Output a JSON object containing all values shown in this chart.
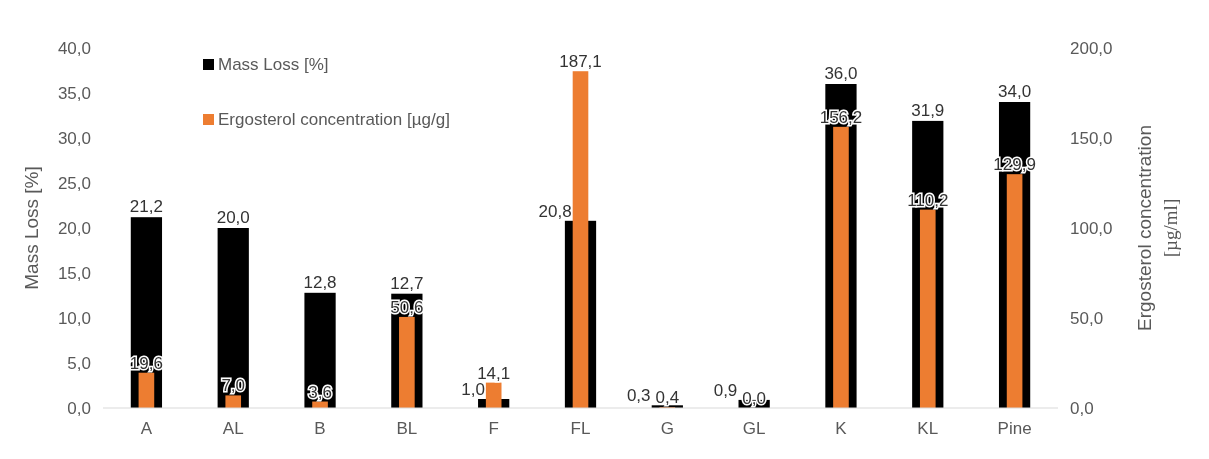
{
  "chart_data": {
    "type": "bar",
    "categories": [
      "A",
      "AL",
      "B",
      "BL",
      "F",
      "FL",
      "G",
      "GL",
      "K",
      "KL",
      "Pine"
    ],
    "series": [
      {
        "name": "Mass Loss [%]",
        "color": "#000000",
        "values": [
          21.2,
          20.0,
          12.8,
          12.7,
          1.0,
          20.8,
          0.3,
          0.9,
          36.0,
          31.9,
          34.0
        ],
        "value_labels": [
          "21,2",
          "20,0",
          "12,8",
          "12,7",
          "1,0",
          "20,8",
          "0,3",
          "0,9",
          "36,0",
          "31,9",
          "34,0"
        ]
      },
      {
        "name": "Ergosterol concentration [µg/g]",
        "color": "#ed7d31",
        "axis": "y2",
        "values": [
          19.6,
          7.0,
          3.6,
          50.6,
          14.1,
          187.1,
          0.4,
          0.0,
          156.2,
          110.2,
          129.9
        ],
        "value_labels": [
          "19,6",
          "7,0",
          "3,6",
          "50,6",
          "14,1",
          "187,1",
          "0,4",
          "0,0",
          "156,2",
          "110,2",
          "129,9"
        ]
      }
    ],
    "ylabel": "Mass Loss [%]",
    "y2label": "Ergosterol concentration [µg/ml]",
    "ylim": [
      0,
      40
    ],
    "yticks": [
      {
        "value": 0,
        "label": "0,0"
      },
      {
        "value": 5,
        "label": "5,0"
      },
      {
        "value": 10,
        "label": "10,0"
      },
      {
        "value": 15,
        "label": "15,0"
      },
      {
        "value": 20,
        "label": "20,0"
      },
      {
        "value": 25,
        "label": "25,0"
      },
      {
        "value": 30,
        "label": "30,0"
      },
      {
        "value": 35,
        "label": "35,0"
      },
      {
        "value": 40,
        "label": "40,0"
      }
    ],
    "y2lim": [
      0,
      200
    ],
    "y2ticks": [
      {
        "value": 0,
        "label": "0,0"
      },
      {
        "value": 50,
        "label": "50,0"
      },
      {
        "value": 100,
        "label": "100,0"
      },
      {
        "value": 150,
        "label": "150,0"
      },
      {
        "value": 200,
        "label": "200,0"
      }
    ],
    "legend": "top left",
    "grid": false
  }
}
